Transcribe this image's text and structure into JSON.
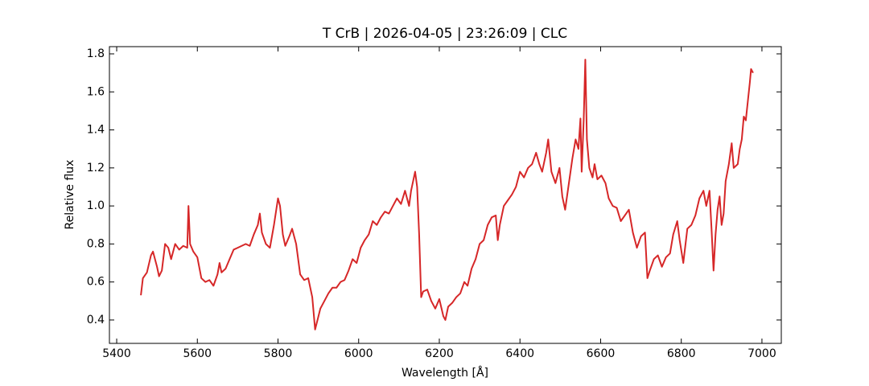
{
  "chart_data": {
    "type": "line",
    "title": "T CrB | 2026-04-05 | 23:26:09 | CLC",
    "x_label": "Wavelength [Å]",
    "y_label": "Relative flux",
    "xlim": [
      5382,
      7048
    ],
    "ylim": [
      0.277,
      1.838
    ],
    "xticks": [
      5400,
      5600,
      5800,
      6000,
      6200,
      6400,
      6600,
      6800,
      7000
    ],
    "yticks": [
      0.4,
      0.6,
      0.8,
      {
        "value": 1,
        "label": "1.0"
      },
      1.2,
      1.4,
      1.6,
      1.8
    ],
    "series": [
      {
        "color": "#d62728",
        "x": [
          5460,
          5465,
          5475,
          5485,
          5490,
          5500,
          5505,
          5512,
          5520,
          5528,
          5535,
          5545,
          5555,
          5565,
          5575,
          5578,
          5582,
          5590,
          5600,
          5610,
          5620,
          5630,
          5640,
          5650,
          5655,
          5660,
          5670,
          5680,
          5690,
          5700,
          5710,
          5720,
          5730,
          5740,
          5750,
          5755,
          5760,
          5770,
          5780,
          5790,
          5800,
          5805,
          5812,
          5818,
          5828,
          5835,
          5845,
          5855,
          5865,
          5875,
          5885,
          5892,
          5898,
          5905,
          5915,
          5925,
          5935,
          5945,
          5955,
          5965,
          5975,
          5985,
          5995,
          6005,
          6015,
          6025,
          6035,
          6045,
          6055,
          6065,
          6075,
          6085,
          6095,
          6105,
          6115,
          6125,
          6130,
          6140,
          6145,
          6150,
          6155,
          6160,
          6170,
          6180,
          6190,
          6200,
          6210,
          6215,
          6222,
          6232,
          6242,
          6252,
          6262,
          6270,
          6280,
          6290,
          6300,
          6310,
          6320,
          6330,
          6340,
          6345,
          6350,
          6360,
          6370,
          6380,
          6390,
          6400,
          6410,
          6420,
          6430,
          6440,
          6448,
          6455,
          6465,
          6470,
          6478,
          6488,
          6498,
          6505,
          6512,
          6520,
          6530,
          6538,
          6545,
          6550,
          6553,
          6558,
          6562,
          6566,
          6572,
          6580,
          6585,
          6592,
          6602,
          6612,
          6620,
          6630,
          6640,
          6650,
          6660,
          6670,
          6680,
          6690,
          6700,
          6710,
          6716,
          6722,
          6732,
          6742,
          6752,
          6762,
          6772,
          6780,
          6790,
          6796,
          6805,
          6815,
          6825,
          6835,
          6845,
          6855,
          6862,
          6870,
          6875,
          6880,
          6885,
          6890,
          6895,
          6900,
          6905,
          6910,
          6918,
          6925,
          6930,
          6940,
          6945,
          6950,
          6955,
          6960,
          6965,
          6970,
          6973,
          6978
        ],
        "values": [
          0.53,
          0.62,
          0.65,
          0.74,
          0.76,
          0.68,
          0.63,
          0.66,
          0.8,
          0.78,
          0.72,
          0.8,
          0.77,
          0.79,
          0.78,
          1.0,
          0.8,
          0.76,
          0.73,
          0.62,
          0.6,
          0.61,
          0.58,
          0.64,
          0.7,
          0.65,
          0.67,
          0.72,
          0.77,
          0.78,
          0.79,
          0.8,
          0.79,
          0.85,
          0.9,
          0.96,
          0.86,
          0.8,
          0.78,
          0.9,
          1.04,
          1.0,
          0.85,
          0.79,
          0.84,
          0.88,
          0.8,
          0.64,
          0.61,
          0.62,
          0.52,
          0.35,
          0.4,
          0.46,
          0.5,
          0.54,
          0.57,
          0.57,
          0.6,
          0.61,
          0.66,
          0.72,
          0.7,
          0.78,
          0.82,
          0.85,
          0.92,
          0.9,
          0.94,
          0.97,
          0.96,
          1.0,
          1.04,
          1.01,
          1.08,
          1.0,
          1.08,
          1.18,
          1.1,
          0.85,
          0.52,
          0.55,
          0.56,
          0.5,
          0.46,
          0.51,
          0.42,
          0.4,
          0.47,
          0.49,
          0.52,
          0.54,
          0.6,
          0.58,
          0.67,
          0.72,
          0.8,
          0.82,
          0.9,
          0.94,
          0.95,
          0.82,
          0.9,
          1.0,
          1.03,
          1.06,
          1.1,
          1.18,
          1.15,
          1.2,
          1.22,
          1.28,
          1.22,
          1.18,
          1.28,
          1.35,
          1.18,
          1.12,
          1.2,
          1.05,
          0.98,
          1.1,
          1.25,
          1.35,
          1.3,
          1.46,
          1.18,
          1.45,
          1.77,
          1.35,
          1.2,
          1.15,
          1.22,
          1.14,
          1.16,
          1.12,
          1.04,
          1.0,
          0.99,
          0.92,
          0.95,
          0.98,
          0.86,
          0.78,
          0.84,
          0.86,
          0.62,
          0.66,
          0.72,
          0.74,
          0.68,
          0.73,
          0.75,
          0.85,
          0.92,
          0.82,
          0.7,
          0.88,
          0.9,
          0.95,
          1.04,
          1.08,
          1.0,
          1.08,
          0.88,
          0.66,
          0.85,
          0.98,
          1.05,
          0.9,
          0.96,
          1.13,
          1.22,
          1.33,
          1.2,
          1.22,
          1.3,
          1.35,
          1.47,
          1.45,
          1.55,
          1.65,
          1.72,
          1.7
        ]
      }
    ]
  }
}
